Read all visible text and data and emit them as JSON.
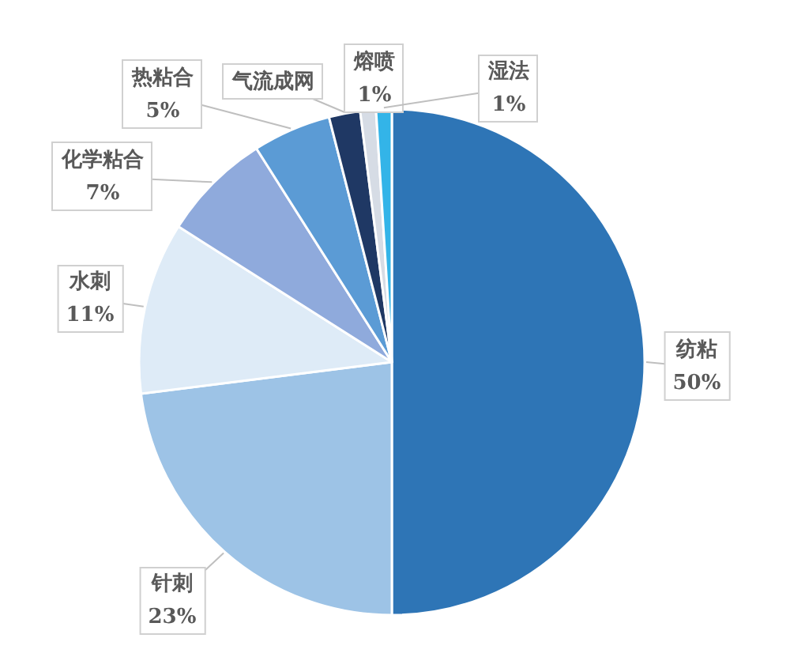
{
  "chart_data": {
    "type": "pie",
    "categories": [
      "纺粘",
      "针刺",
      "水刺",
      "化学粘合",
      "热粘合",
      "气流成网",
      "熔喷",
      "湿法"
    ],
    "values": [
      50,
      23,
      11,
      7,
      5,
      2,
      1,
      1
    ],
    "colors": [
      "#2e75b6",
      "#9dc3e6",
      "#deebf7",
      "#8faadc",
      "#5b9bd5",
      "#1f3864",
      "#d6dce5",
      "#33b4e8"
    ],
    "value_labels": [
      "50%",
      "23%",
      "11%",
      "7%",
      "5%",
      null,
      "1%",
      "1%"
    ]
  }
}
